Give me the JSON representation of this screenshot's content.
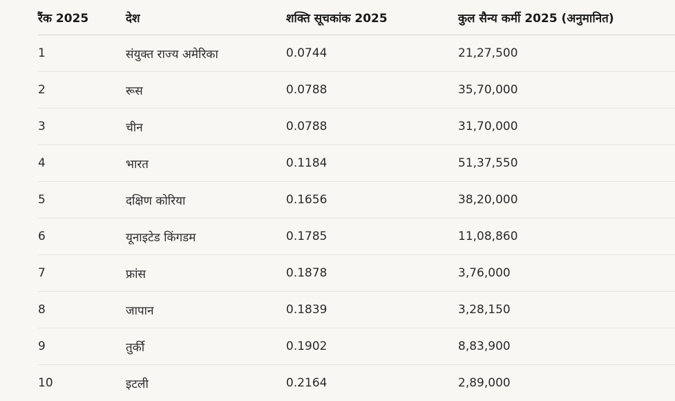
{
  "table": {
    "headers": {
      "rank": "रैंक 2025",
      "country": "देश",
      "index": "शक्ति सूचकांक 2025",
      "personnel": "कुल सैन्य कर्मी 2025 (अनुमानित)"
    },
    "rows": [
      {
        "rank": "1",
        "country": "संयुक्त राज्य अमेरिका",
        "index": "0.0744",
        "personnel": "21,27,500"
      },
      {
        "rank": "2",
        "country": "रूस",
        "index": "0.0788",
        "personnel": "35,70,000"
      },
      {
        "rank": "3",
        "country": "चीन",
        "index": "0.0788",
        "personnel": "31,70,000"
      },
      {
        "rank": "4",
        "country": "भारत",
        "index": "0.1184",
        "personnel": "51,37,550"
      },
      {
        "rank": "5",
        "country": "दक्षिण कोरिया",
        "index": "0.1656",
        "personnel": "38,20,000"
      },
      {
        "rank": "6",
        "country": "यूनाइटेड किंगडम",
        "index": "0.1785",
        "personnel": "11,08,860"
      },
      {
        "rank": "7",
        "country": "फ्रांस",
        "index": "0.1878",
        "personnel": "3,76,000"
      },
      {
        "rank": "8",
        "country": "जापान",
        "index": "0.1839",
        "personnel": "3,28,150"
      },
      {
        "rank": "9",
        "country": "तुर्की",
        "index": "0.1902",
        "personnel": "8,83,900"
      },
      {
        "rank": "10",
        "country": "इटली",
        "index": "0.2164",
        "personnel": "2,89,000"
      }
    ]
  }
}
